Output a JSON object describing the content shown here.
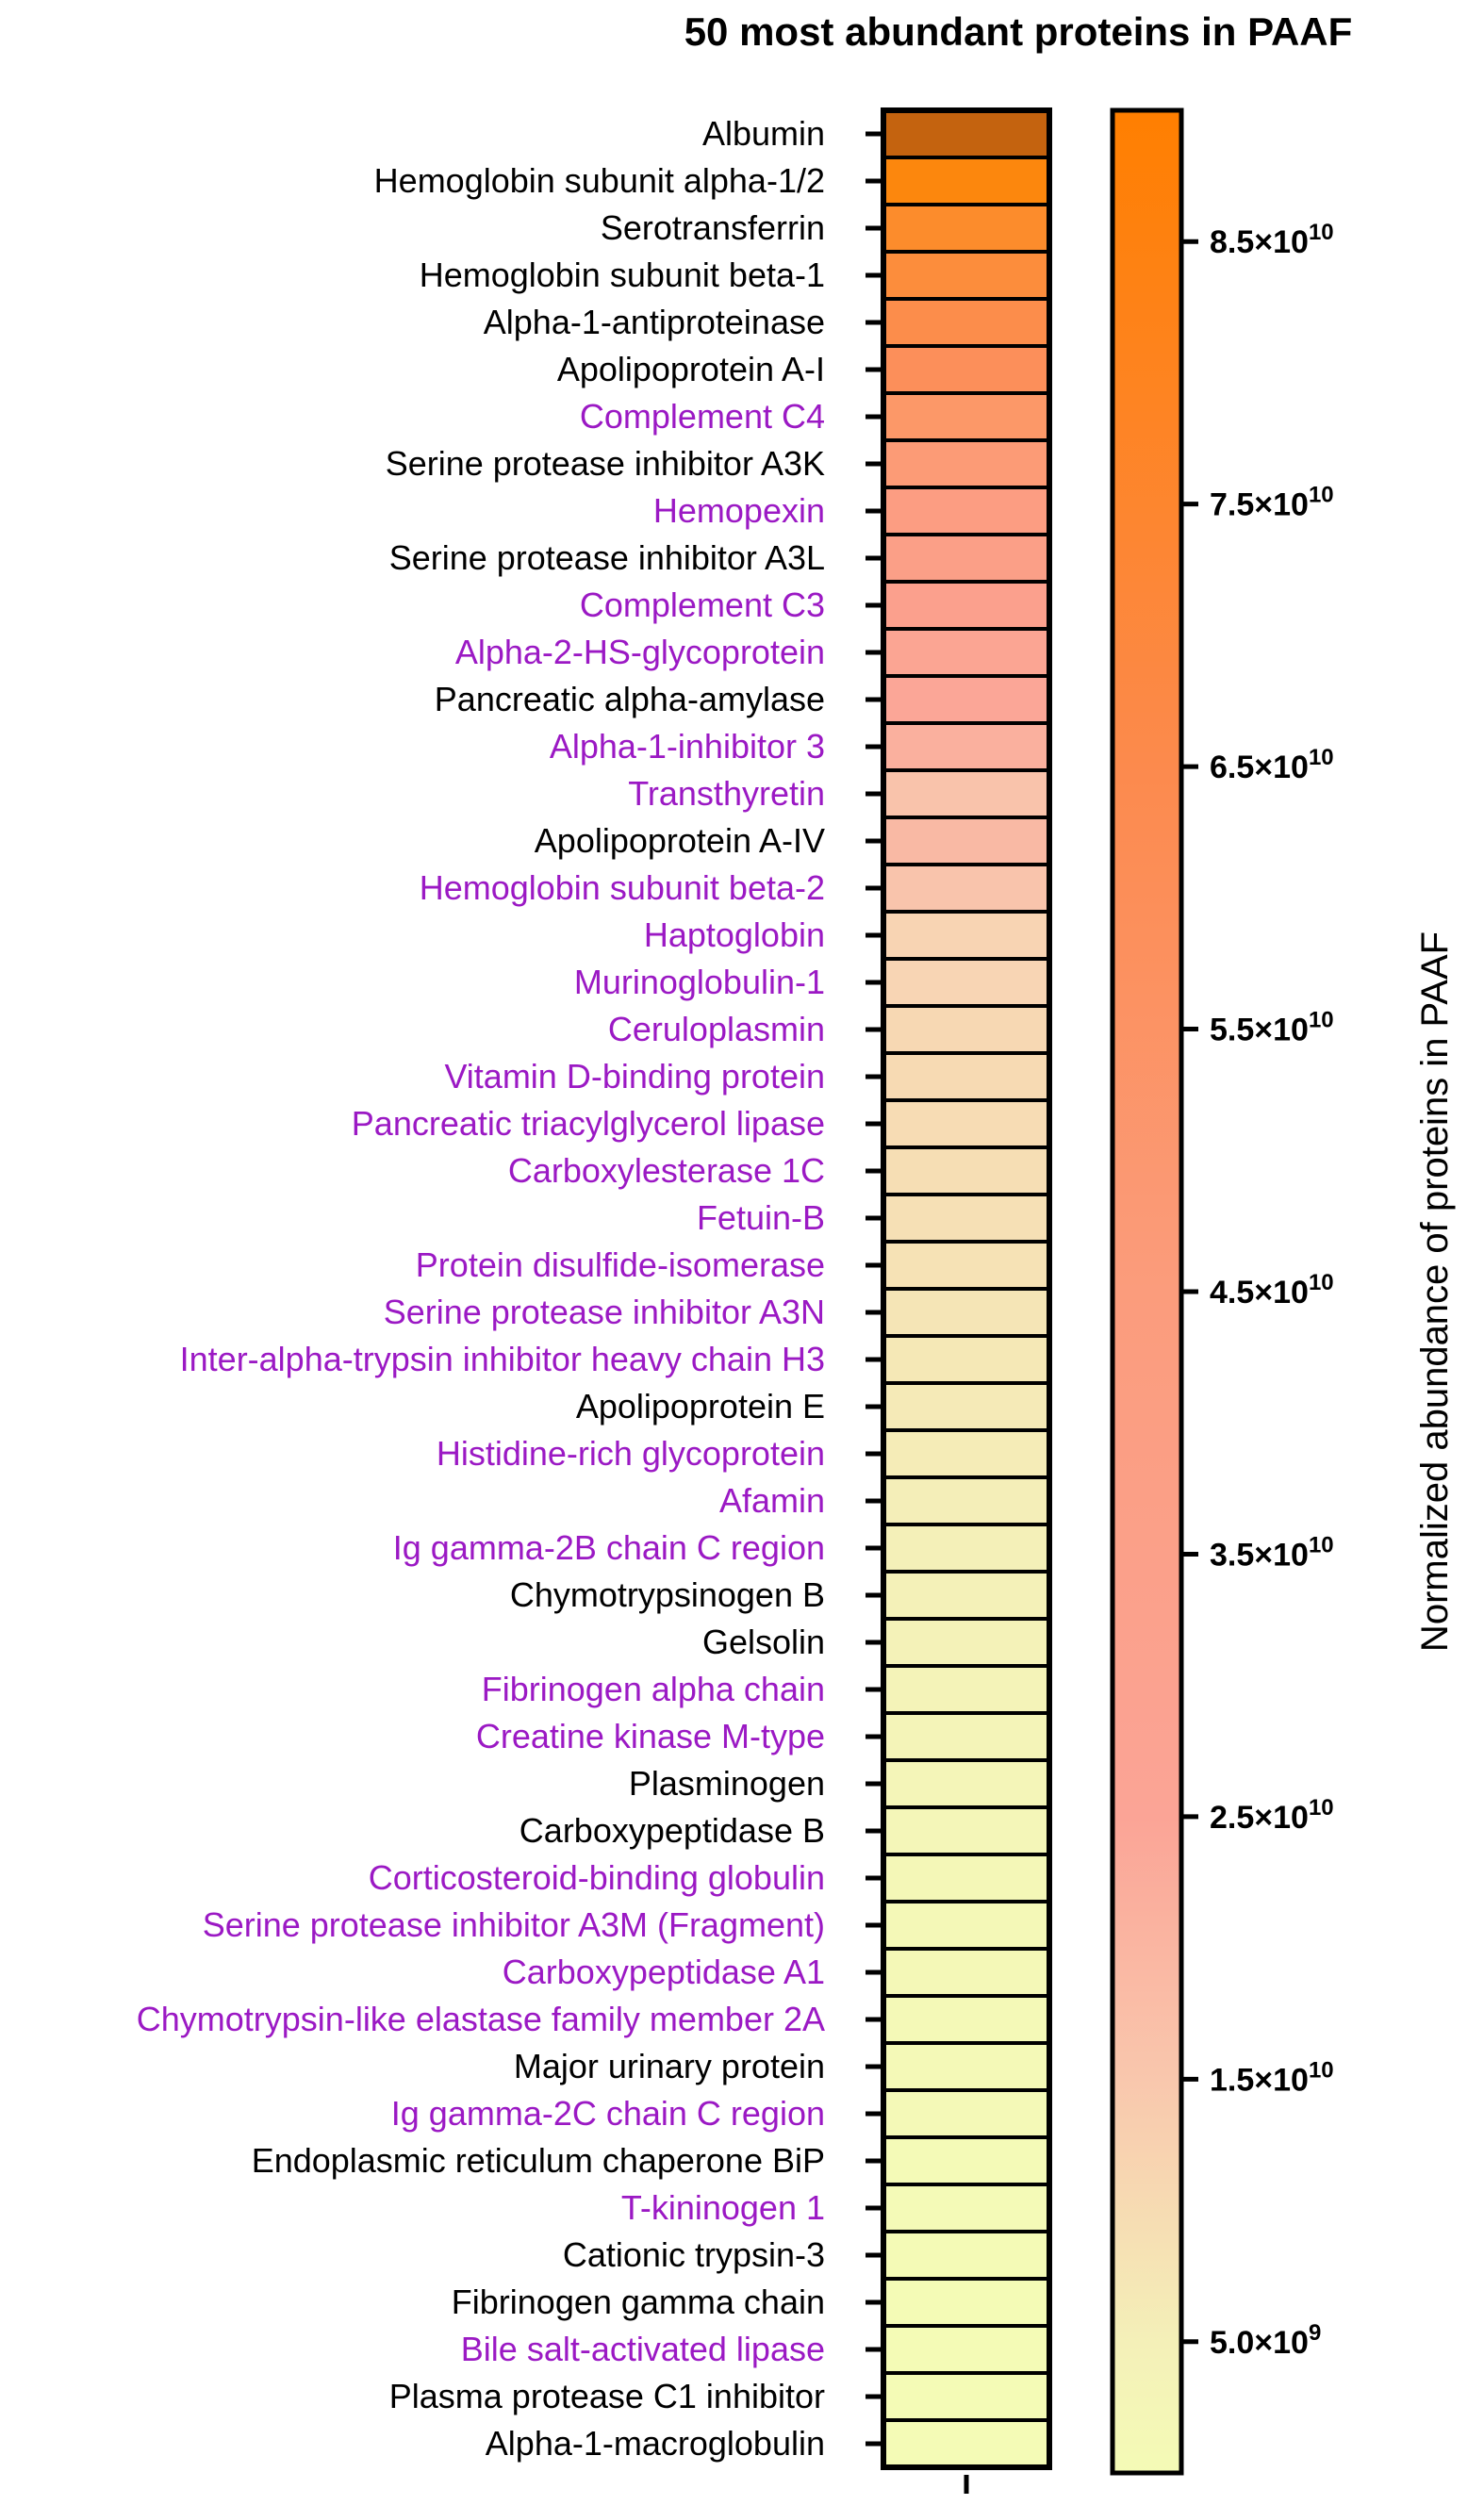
{
  "chart_data": {
    "type": "heatmap",
    "title": "50 most abundant proteins in PAAF",
    "colorbar_label": "Normalized abundance of proteins in PAAF",
    "color_scale": {
      "stops": [
        {
          "value": 0,
          "color": "#f4fbb6"
        },
        {
          "value": 5000000000,
          "color": "#f4f0b8"
        },
        {
          "value": 15000000000,
          "color": "#f9c7ad"
        },
        {
          "value": 25000000000,
          "color": "#fba496"
        },
        {
          "value": 45000000000,
          "color": "#fb9c7c"
        },
        {
          "value": 65000000000,
          "color": "#fc8a4d"
        },
        {
          "value": 90000000000,
          "color": "#ff7f00"
        }
      ],
      "range": [
        0,
        90000000000
      ],
      "ticks": [
        {
          "value": 5000000000,
          "base": "5.0×10",
          "exp": "9"
        },
        {
          "value": 15000000000,
          "base": "1.5×10",
          "exp": "10"
        },
        {
          "value": 25000000000,
          "base": "2.5×10",
          "exp": "10"
        },
        {
          "value": 35000000000,
          "base": "3.5×10",
          "exp": "10"
        },
        {
          "value": 45000000000,
          "base": "4.5×10",
          "exp": "10"
        },
        {
          "value": 55000000000,
          "base": "5.5×10",
          "exp": "10"
        },
        {
          "value": 65000000000,
          "base": "6.5×10",
          "exp": "10"
        },
        {
          "value": 75000000000,
          "base": "7.5×10",
          "exp": "10"
        },
        {
          "value": 85000000000,
          "base": "8.5×10",
          "exp": "10"
        }
      ]
    },
    "highlight_color": "#9b19c4",
    "default_label_color": "#000000",
    "rows": [
      {
        "label": "Albumin",
        "highlight": false,
        "value": 110000000000,
        "color": "#c4630f"
      },
      {
        "label": "Hemoglobin subunit alpha-1/2",
        "highlight": false,
        "value": 80000000000,
        "color": "#fc870d"
      },
      {
        "label": "Serotransferrin",
        "highlight": false,
        "value": 74000000000,
        "color": "#fc8c2c"
      },
      {
        "label": "Hemoglobin subunit beta-1",
        "highlight": false,
        "value": 70000000000,
        "color": "#fc8d3c"
      },
      {
        "label": "Alpha-1-antiproteinase",
        "highlight": false,
        "value": 60000000000,
        "color": "#fc8d4b"
      },
      {
        "label": "Apolipoprotein A-I",
        "highlight": false,
        "value": 55000000000,
        "color": "#fc8f5a"
      },
      {
        "label": "Complement C4",
        "highlight": true,
        "value": 48000000000,
        "color": "#fc9868"
      },
      {
        "label": "Serine protease inhibitor A3K",
        "highlight": false,
        "value": 45000000000,
        "color": "#fc9b76"
      },
      {
        "label": "Hemopexin",
        "highlight": true,
        "value": 38000000000,
        "color": "#fc9d82"
      },
      {
        "label": "Serine protease inhibitor A3L",
        "highlight": false,
        "value": 35000000000,
        "color": "#fb9f87"
      },
      {
        "label": "Complement C3",
        "highlight": true,
        "value": 32000000000,
        "color": "#fba08d"
      },
      {
        "label": "Alpha-2-HS-glycoprotein",
        "highlight": true,
        "value": 27000000000,
        "color": "#fba593"
      },
      {
        "label": "Pancreatic alpha-amylase",
        "highlight": false,
        "value": 25000000000,
        "color": "#fba697"
      },
      {
        "label": "Alpha-1-inhibitor 3",
        "highlight": true,
        "value": 21000000000,
        "color": "#fab09e"
      },
      {
        "label": "Transthyretin",
        "highlight": true,
        "value": 15000000000,
        "color": "#f9c3ab"
      },
      {
        "label": "Apolipoprotein A-IV",
        "highlight": false,
        "value": 17000000000,
        "color": "#f9b9a4"
      },
      {
        "label": "Hemoglobin subunit beta-2",
        "highlight": true,
        "value": 14000000000,
        "color": "#f9c4ac"
      },
      {
        "label": "Haptoglobin",
        "highlight": true,
        "value": 11500000000,
        "color": "#f8d4b3"
      },
      {
        "label": "Murinoglobulin-1",
        "highlight": true,
        "value": 11000000000,
        "color": "#f8d5b4"
      },
      {
        "label": "Ceruloplasmin",
        "highlight": true,
        "value": 10500000000,
        "color": "#f7d8b3"
      },
      {
        "label": "Vitamin D-binding protein",
        "highlight": true,
        "value": 10000000000,
        "color": "#f7dab3"
      },
      {
        "label": "Pancreatic triacylglycerol lipase",
        "highlight": true,
        "value": 9500000000,
        "color": "#f7dcb4"
      },
      {
        "label": "Carboxylesterase 1C",
        "highlight": true,
        "value": 9000000000,
        "color": "#f6deb4"
      },
      {
        "label": "Fetuin-B",
        "highlight": true,
        "value": 8500000000,
        "color": "#f6e0b5"
      },
      {
        "label": "Protein disulfide-isomerase",
        "highlight": true,
        "value": 8000000000,
        "color": "#f6e2b5"
      },
      {
        "label": "Serine protease inhibitor A3N",
        "highlight": true,
        "value": 7500000000,
        "color": "#f5e5b6"
      },
      {
        "label": "Inter-alpha-trypsin inhibitor heavy chain H3",
        "highlight": true,
        "value": 7000000000,
        "color": "#f5e8b6"
      },
      {
        "label": "Apolipoprotein E",
        "highlight": false,
        "value": 6500000000,
        "color": "#f5eab7"
      },
      {
        "label": "Histidine-rich glycoprotein",
        "highlight": true,
        "value": 6000000000,
        "color": "#f5ecb7"
      },
      {
        "label": "Afamin",
        "highlight": true,
        "value": 5500000000,
        "color": "#f4eeb8"
      },
      {
        "label": "Ig gamma-2B chain C region",
        "highlight": true,
        "value": 5000000000,
        "color": "#f4f0b8"
      },
      {
        "label": "Chymotrypsinogen B",
        "highlight": false,
        "value": 4600000000,
        "color": "#f4f1b8"
      },
      {
        "label": "Gelsolin",
        "highlight": false,
        "value": 4300000000,
        "color": "#f4f2b8"
      },
      {
        "label": "Fibrinogen alpha chain",
        "highlight": true,
        "value": 4000000000,
        "color": "#f4f3b8"
      },
      {
        "label": "Creatine kinase M-type",
        "highlight": true,
        "value": 3700000000,
        "color": "#f4f4b8"
      },
      {
        "label": "Plasminogen",
        "highlight": false,
        "value": 3400000000,
        "color": "#f4f5b8"
      },
      {
        "label": "Carboxypeptidase B",
        "highlight": false,
        "value": 3100000000,
        "color": "#f4f6b8"
      },
      {
        "label": "Corticosteroid-binding globulin",
        "highlight": true,
        "value": 2800000000,
        "color": "#f4f7b7"
      },
      {
        "label": "Serine protease inhibitor A3M (Fragment)",
        "highlight": true,
        "value": 2500000000,
        "color": "#f4f8b7"
      },
      {
        "label": "Carboxypeptidase A1",
        "highlight": true,
        "value": 2300000000,
        "color": "#f4f8b7"
      },
      {
        "label": "Chymotrypsin-like elastase family member 2A",
        "highlight": true,
        "value": 2100000000,
        "color": "#f4f9b7"
      },
      {
        "label": "Major urinary protein",
        "highlight": false,
        "value": 1900000000,
        "color": "#f4f9b7"
      },
      {
        "label": "Ig gamma-2C chain C region",
        "highlight": true,
        "value": 1700000000,
        "color": "#f4f9b7"
      },
      {
        "label": "Endoplasmic reticulum chaperone BiP",
        "highlight": false,
        "value": 1500000000,
        "color": "#f4fab7"
      },
      {
        "label": "T-kininogen 1",
        "highlight": true,
        "value": 1300000000,
        "color": "#f4fab7"
      },
      {
        "label": "Cationic trypsin-3",
        "highlight": false,
        "value": 1100000000,
        "color": "#f4fab6"
      },
      {
        "label": "Fibrinogen gamma chain",
        "highlight": false,
        "value": 900000000,
        "color": "#f4fbb6"
      },
      {
        "label": "Bile salt-activated lipase",
        "highlight": true,
        "value": 800000000,
        "color": "#f4fbb6"
      },
      {
        "label": "Plasma protease C1 inhibitor",
        "highlight": false,
        "value": 700000000,
        "color": "#f4fbb6"
      },
      {
        "label": "Alpha-1-macroglobulin",
        "highlight": false,
        "value": 600000000,
        "color": "#f4fbb6"
      }
    ]
  }
}
